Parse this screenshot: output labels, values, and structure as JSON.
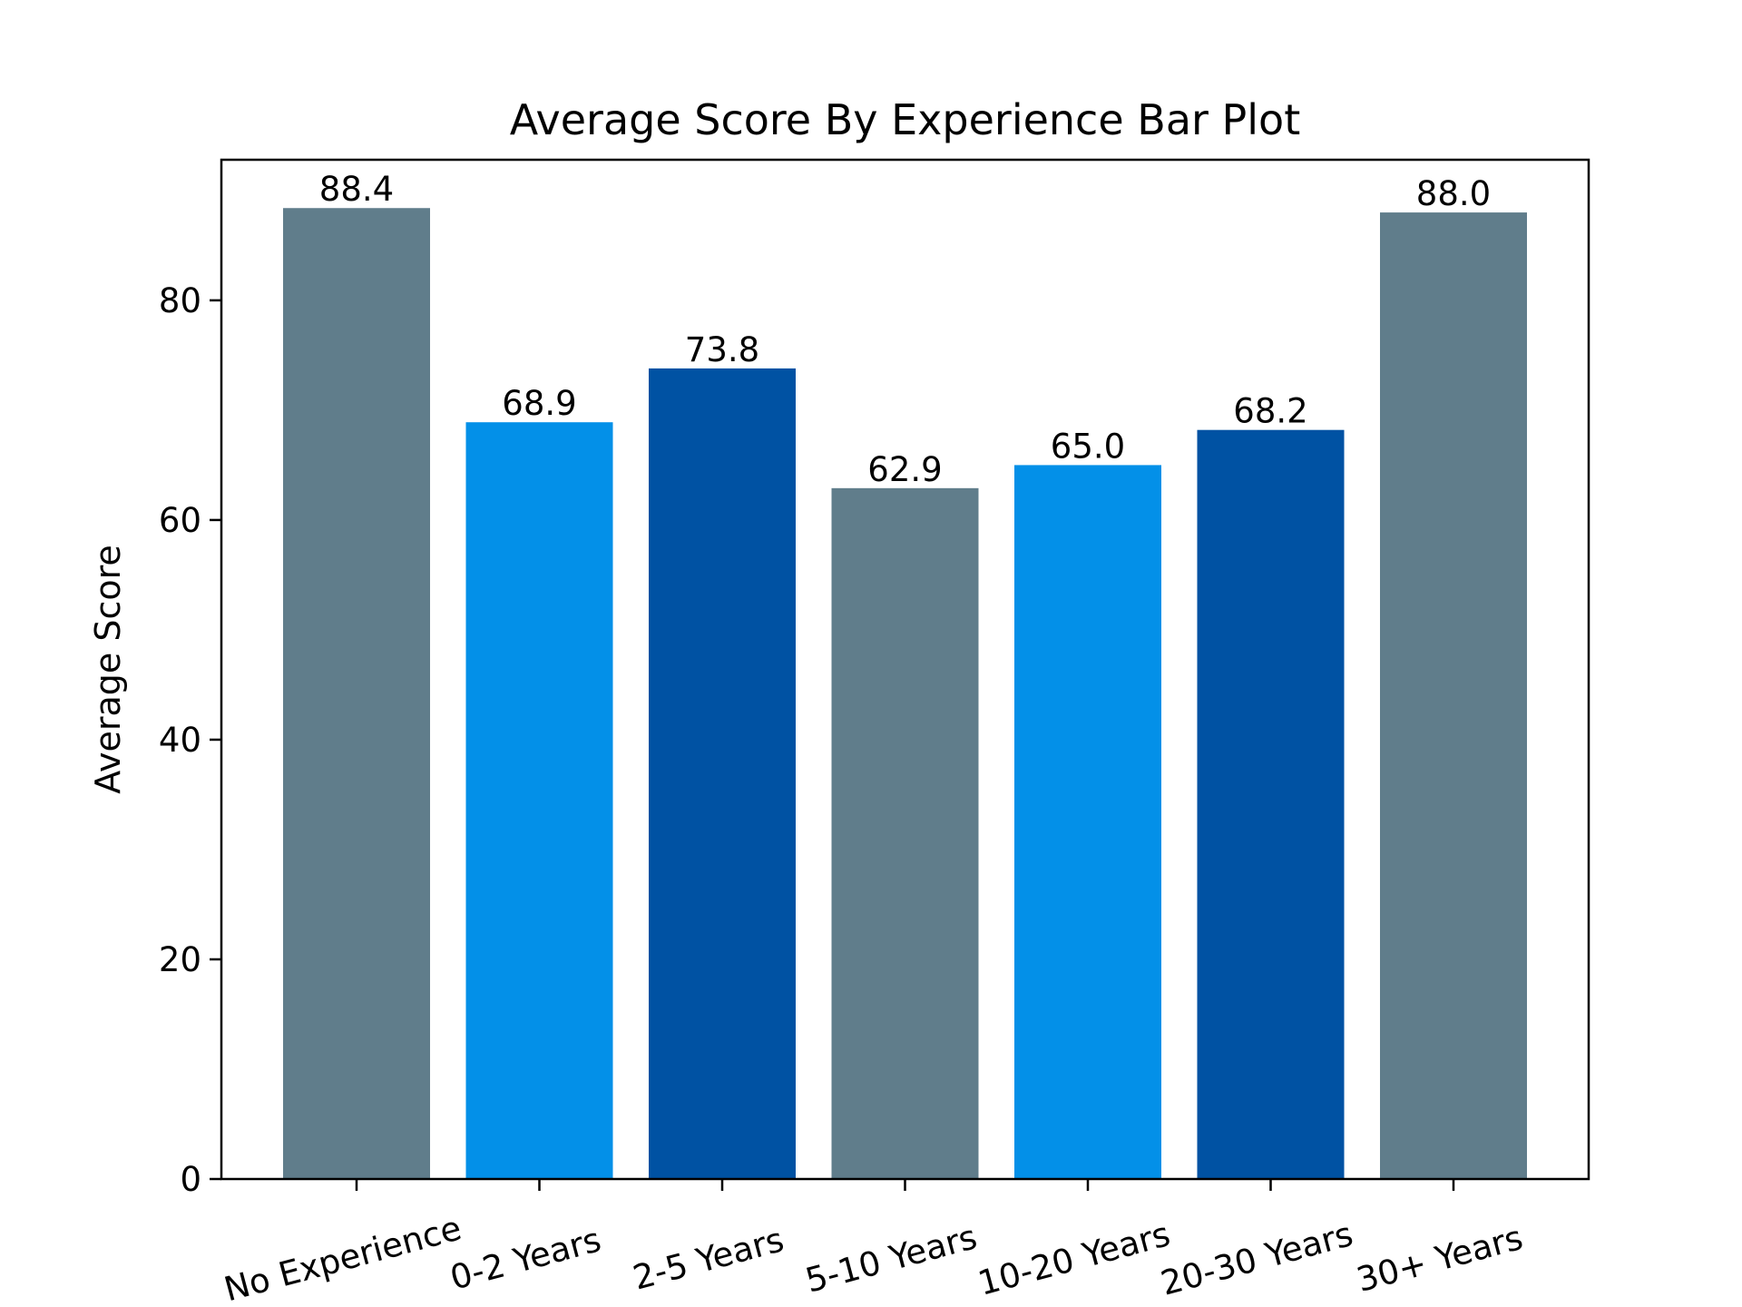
{
  "chart_data": {
    "type": "bar",
    "title": "Average Score By Experience Bar Plot",
    "xlabel": "",
    "ylabel": "Average Score",
    "categories": [
      "No Experience",
      "0-2 Years",
      "2-5 Years",
      "5-10 Years",
      "10-20 Years",
      "20-30 Years",
      "30+ Years"
    ],
    "values": [
      88.4,
      68.9,
      73.8,
      62.9,
      65.0,
      68.2,
      88.0
    ],
    "value_labels": [
      "88.4",
      "68.9",
      "73.8",
      "62.9",
      "65.0",
      "68.2",
      "88.0"
    ],
    "bar_colors": [
      "#607d8b",
      "#0390e8",
      "#0052a3",
      "#607d8b",
      "#0390e8",
      "#0052a3",
      "#607d8b"
    ],
    "ylim": [
      0,
      92.8
    ],
    "yticks": [
      0,
      20,
      40,
      60,
      80
    ],
    "ytick_labels": [
      "0",
      "20",
      "40",
      "60",
      "80"
    ],
    "grid": false,
    "legend": "none",
    "xtick_rotation": "rotated ~15°"
  }
}
